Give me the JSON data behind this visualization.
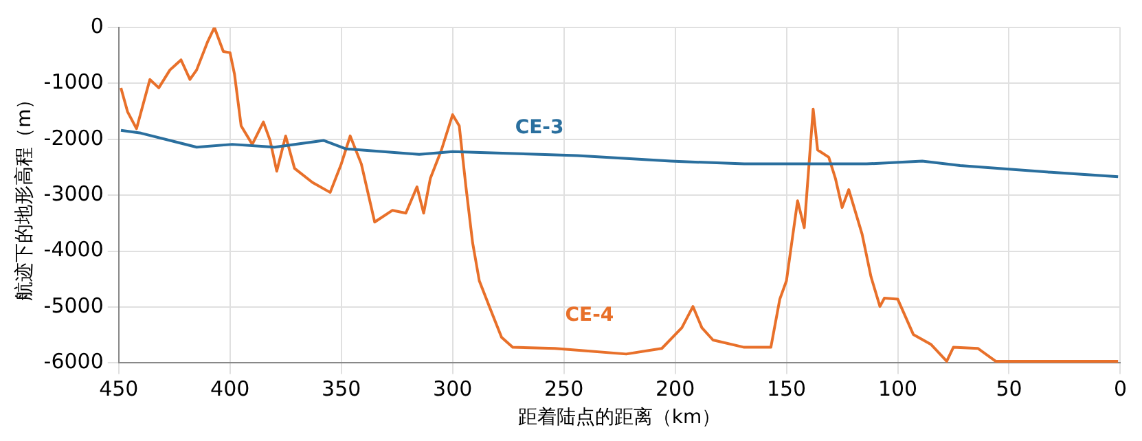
{
  "chart_data": {
    "type": "line",
    "xlabel": "距着陆点的距离（km）",
    "ylabel": "航迹下的地形高程（m）",
    "xlim": [
      450,
      0
    ],
    "xticks": [
      450,
      400,
      350,
      300,
      250,
      200,
      150,
      100,
      50,
      0
    ],
    "ylim": [
      -6000,
      0
    ],
    "yticks": [
      -6000,
      -5000,
      -4000,
      -3000,
      -2000,
      -1000,
      0
    ],
    "grid": true,
    "legend": false,
    "marker": "none",
    "line_style": "solid",
    "series": [
      {
        "name": "CE-3",
        "color": "#2a6f9e",
        "x": [
          449,
          440,
          415,
          399,
          380,
          358,
          348,
          315,
          300,
          244,
          202,
          169,
          114,
          89,
          72,
          31,
          1
        ],
        "values": [
          -1840,
          -1890,
          -2140,
          -2090,
          -2140,
          -2020,
          -2170,
          -2270,
          -2220,
          -2290,
          -2390,
          -2440,
          -2440,
          -2390,
          -2470,
          -2590,
          -2670
        ]
      },
      {
        "name": "CE-4",
        "color": "#e8702a",
        "x": [
          449,
          446,
          442,
          436,
          432,
          427,
          422,
          418,
          415,
          410,
          407,
          403,
          400,
          398,
          395,
          390,
          385,
          382,
          379,
          375,
          371,
          363,
          355,
          350,
          346,
          341,
          335,
          327,
          321,
          316,
          313,
          310,
          305,
          300,
          297,
          294,
          291,
          288,
          283,
          278,
          273,
          254,
          222,
          206,
          197,
          192,
          188,
          183,
          169,
          157,
          153,
          150,
          145,
          142,
          138,
          136,
          131,
          128,
          125,
          122,
          116,
          112,
          108,
          106,
          100,
          93,
          85,
          78,
          75,
          64,
          56,
          43,
          1
        ],
        "values": [
          -1080,
          -1510,
          -1810,
          -930,
          -1080,
          -760,
          -580,
          -930,
          -760,
          -250,
          0,
          -430,
          -450,
          -830,
          -1760,
          -2090,
          -1690,
          -2020,
          -2570,
          -1940,
          -2520,
          -2770,
          -2950,
          -2440,
          -1940,
          -2440,
          -3480,
          -3270,
          -3320,
          -2850,
          -3320,
          -2700,
          -2190,
          -1560,
          -1760,
          -2850,
          -3850,
          -4530,
          -5040,
          -5540,
          -5720,
          -5740,
          -5840,
          -5740,
          -5370,
          -4990,
          -5370,
          -5590,
          -5720,
          -5720,
          -4860,
          -4530,
          -3100,
          -3580,
          -1460,
          -2190,
          -2320,
          -2700,
          -3220,
          -2900,
          -3700,
          -4460,
          -4990,
          -4840,
          -4860,
          -5490,
          -5670,
          -5970,
          -5720,
          -5740,
          -5970,
          -5970,
          -5970
        ]
      }
    ]
  }
}
